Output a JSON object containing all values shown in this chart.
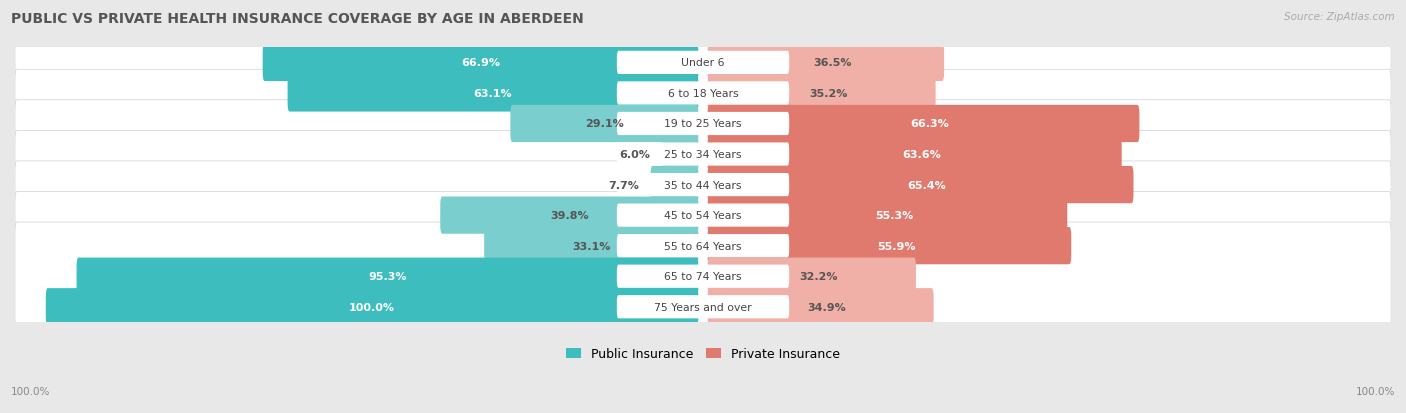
{
  "title": "PUBLIC VS PRIVATE HEALTH INSURANCE COVERAGE BY AGE IN ABERDEEN",
  "source": "Source: ZipAtlas.com",
  "categories": [
    "Under 6",
    "6 to 18 Years",
    "19 to 25 Years",
    "25 to 34 Years",
    "35 to 44 Years",
    "45 to 54 Years",
    "55 to 64 Years",
    "65 to 74 Years",
    "75 Years and over"
  ],
  "public_values": [
    66.9,
    63.1,
    29.1,
    6.0,
    7.7,
    39.8,
    33.1,
    95.3,
    100.0
  ],
  "private_values": [
    36.5,
    35.2,
    66.3,
    63.6,
    65.4,
    55.3,
    55.9,
    32.2,
    34.9
  ],
  "public_color_high": "#3dbdbd",
  "public_color_low": "#7acece",
  "private_color_high": "#e07a6e",
  "private_color_low": "#f0b0a8",
  "bg_color": "#e8e8e8",
  "row_bg_color": "#ffffff",
  "row_border_color": "#d0d0d0",
  "title_color": "#555555",
  "label_white": "#ffffff",
  "label_dark": "#555555",
  "axis_label": "100.0%",
  "legend_public": "Public Insurance",
  "legend_private": "Private Insurance",
  "figsize": [
    14.06,
    4.14
  ],
  "dpi": 100
}
